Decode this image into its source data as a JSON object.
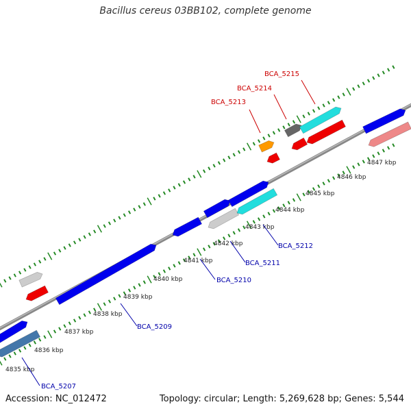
{
  "title": "Bacillus cereus 03BB102, complete genome",
  "footer": {
    "accession": "Accession: NC_012472",
    "stats": "Topology: circular; Length: 5,269,628 bp; Genes: 5,544"
  },
  "ticks": [
    "4835 kbp",
    "4836 kbp",
    "4837 kbp",
    "4838 kbp",
    "4839 kbp",
    "4840 kbp",
    "4841 kbp",
    "4842 kbp",
    "4843 kbp",
    "4844 kbp",
    "4845 kbp",
    "4846 kbp",
    "4847 kbp"
  ],
  "gene_labels": {
    "forward": [
      "BCA_5213",
      "BCA_5214",
      "BCA_5215"
    ],
    "reverse": [
      "BCA_5207",
      "BCA_5209",
      "BCA_5210",
      "BCA_5211",
      "BCA_5212"
    ]
  },
  "colors": {
    "blue": "#0000ee",
    "red": "#ee0000",
    "cyan": "#22dddd",
    "grey": "#cccccc",
    "darkgrey": "#666666",
    "orange": "#ff9900",
    "pink": "#ee8888",
    "steel": "#4477aa",
    "tick": "#228822",
    "backbone": "#888888",
    "label_red": "#cc0000",
    "label_blue": "#0000aa"
  }
}
